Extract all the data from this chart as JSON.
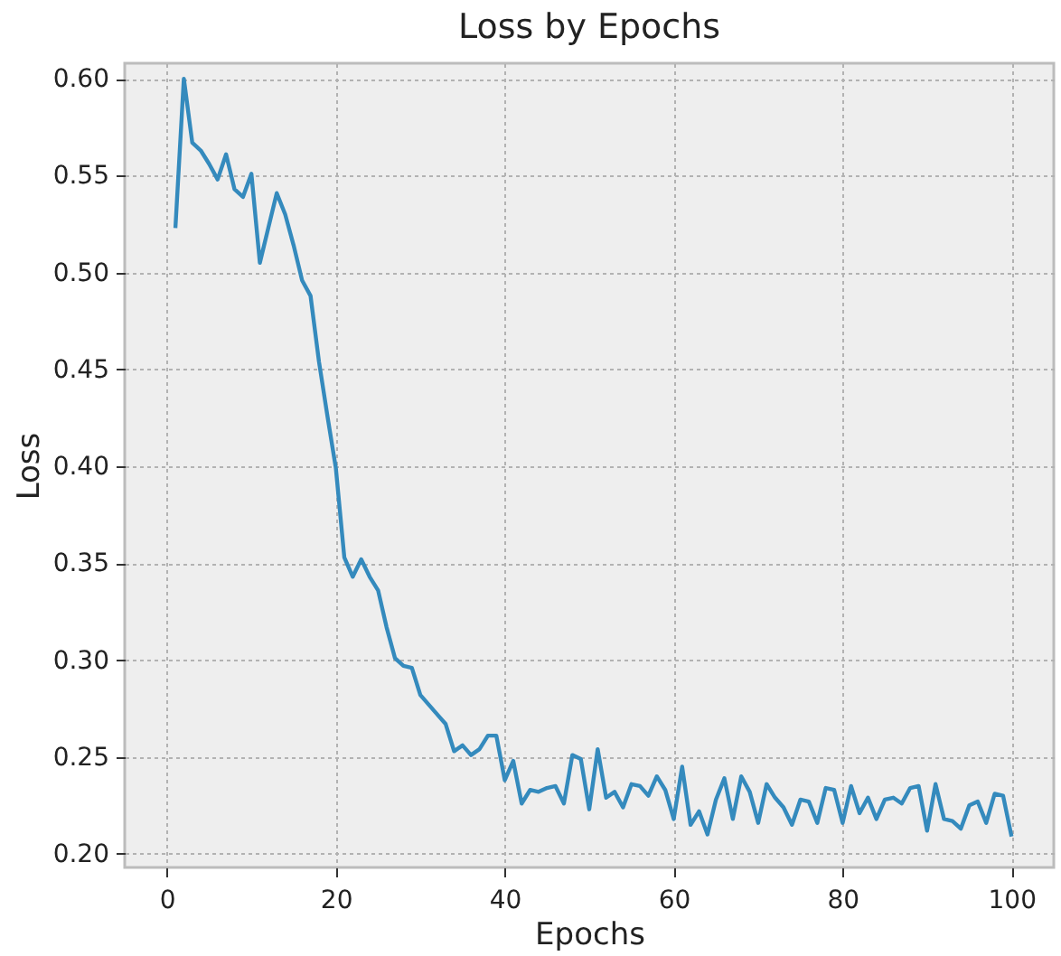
{
  "chart_data": {
    "type": "line",
    "title": "Loss by Epochs",
    "xlabel": "Epochs",
    "ylabel": "Loss",
    "x": [
      1,
      2,
      3,
      4,
      5,
      6,
      7,
      8,
      9,
      10,
      11,
      12,
      13,
      14,
      15,
      16,
      17,
      18,
      19,
      20,
      21,
      22,
      23,
      24,
      25,
      26,
      27,
      28,
      29,
      30,
      31,
      32,
      33,
      34,
      35,
      36,
      37,
      38,
      39,
      40,
      41,
      42,
      43,
      44,
      45,
      46,
      47,
      48,
      49,
      50,
      51,
      52,
      53,
      54,
      55,
      56,
      57,
      58,
      59,
      60,
      61,
      62,
      63,
      64,
      65,
      66,
      67,
      68,
      69,
      70,
      71,
      72,
      73,
      74,
      75,
      76,
      77,
      78,
      79,
      80,
      81,
      82,
      83,
      84,
      85,
      86,
      87,
      88,
      89,
      90,
      91,
      92,
      93,
      94,
      95,
      96,
      97,
      98,
      99,
      100
    ],
    "series": [
      {
        "color": "#348abd",
        "values": [
          0.523,
          0.6,
          0.567,
          0.563,
          0.556,
          0.548,
          0.561,
          0.543,
          0.539,
          0.551,
          0.505,
          0.523,
          0.541,
          0.53,
          0.514,
          0.496,
          0.488,
          0.454,
          0.426,
          0.399,
          0.353,
          0.343,
          0.352,
          0.343,
          0.336,
          0.317,
          0.301,
          0.297,
          0.296,
          0.282,
          0.277,
          0.272,
          0.267,
          0.253,
          0.256,
          0.251,
          0.254,
          0.261,
          0.261,
          0.238,
          0.248,
          0.226,
          0.233,
          0.232,
          0.234,
          0.235,
          0.226,
          0.251,
          0.249,
          0.223,
          0.254,
          0.229,
          0.232,
          0.224,
          0.236,
          0.235,
          0.23,
          0.24,
          0.233,
          0.218,
          0.245,
          0.215,
          0.222,
          0.21,
          0.228,
          0.239,
          0.218,
          0.24,
          0.232,
          0.216,
          0.236,
          0.229,
          0.224,
          0.215,
          0.228,
          0.227,
          0.216,
          0.234,
          0.233,
          0.216,
          0.235,
          0.221,
          0.229,
          0.218,
          0.228,
          0.229,
          0.226,
          0.234,
          0.235,
          0.212,
          0.236,
          0.218,
          0.217,
          0.213,
          0.225,
          0.227,
          0.216,
          0.231,
          0.23,
          0.209
        ]
      }
    ],
    "xlim": [
      -5,
      105
    ],
    "ylim": [
      0.193,
      0.608
    ],
    "xticks": [
      0,
      20,
      40,
      60,
      80,
      100
    ],
    "yticks": [
      {
        "value": 0.2,
        "label": "0.20"
      },
      {
        "value": 0.25,
        "label": "0.25"
      },
      {
        "value": 0.3,
        "label": "0.30"
      },
      {
        "value": 0.35,
        "label": "0.35"
      },
      {
        "value": 0.4,
        "label": "0.40"
      },
      {
        "value": 0.45,
        "label": "0.45"
      },
      {
        "value": 0.5,
        "label": "0.50"
      },
      {
        "value": 0.55,
        "label": "0.55"
      },
      {
        "value": 0.6,
        "label": "0.60"
      }
    ],
    "grid": true,
    "line_style": "solid",
    "marker": "none"
  }
}
